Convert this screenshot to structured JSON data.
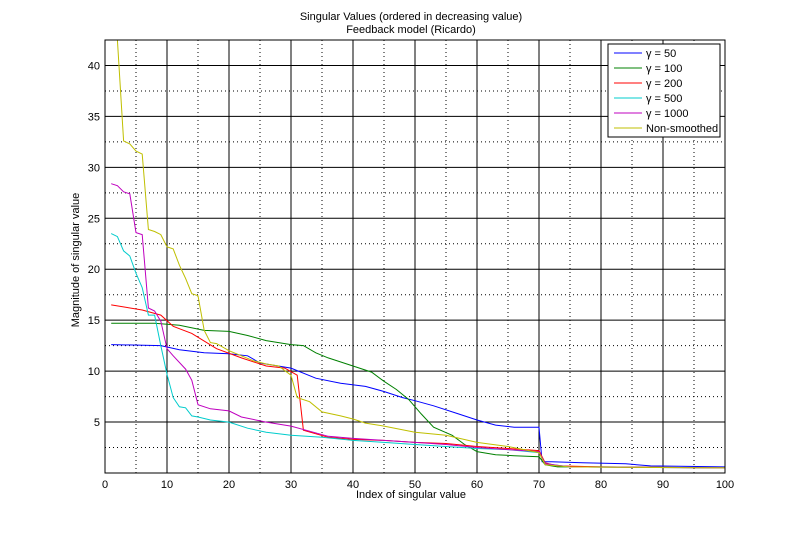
{
  "chart_data": {
    "type": "line",
    "title": "Singular Values (ordered in decreasing value)",
    "subtitle": "Feedback model (Ricardo)",
    "xlabel": "Index of singular value",
    "ylabel": "Magnitude of singular value",
    "xlim": [
      0,
      100
    ],
    "ylim": [
      0,
      42.5
    ],
    "x_ticks": [
      0,
      10,
      20,
      30,
      40,
      50,
      60,
      70,
      80,
      90,
      100
    ],
    "y_ticks": [
      5,
      10,
      15,
      20,
      25,
      30,
      35,
      40
    ],
    "grid": "major solid, minor dotted",
    "legend_position": "top-right",
    "series": [
      {
        "name": "γ = 50",
        "color": "#0000ff",
        "points": [
          [
            1,
            12.6
          ],
          [
            9,
            12.5
          ],
          [
            12,
            12.1
          ],
          [
            16,
            11.8
          ],
          [
            20,
            11.7
          ],
          [
            23,
            11.5
          ],
          [
            25,
            10.8
          ],
          [
            30,
            10.3
          ],
          [
            34,
            9.3
          ],
          [
            38,
            8.8
          ],
          [
            42,
            8.5
          ],
          [
            45,
            8.0
          ],
          [
            48,
            7.4
          ],
          [
            50,
            7.1
          ],
          [
            53,
            6.6
          ],
          [
            57,
            5.8
          ],
          [
            60,
            5.2
          ],
          [
            63,
            4.7
          ],
          [
            66,
            4.5
          ],
          [
            70,
            4.5
          ],
          [
            70.5,
            1.1
          ],
          [
            72,
            1.1
          ],
          [
            77,
            1.0
          ],
          [
            84,
            0.9
          ],
          [
            88,
            0.7
          ],
          [
            100,
            0.6
          ]
        ]
      },
      {
        "name": "γ = 100",
        "color": "#008000",
        "points": [
          [
            1,
            14.7
          ],
          [
            8,
            14.7
          ],
          [
            12,
            14.5
          ],
          [
            16,
            14.0
          ],
          [
            20,
            13.9
          ],
          [
            23,
            13.5
          ],
          [
            26,
            13.0
          ],
          [
            30,
            12.6
          ],
          [
            32,
            12.5
          ],
          [
            34,
            11.8
          ],
          [
            36,
            11.3
          ],
          [
            40,
            10.5
          ],
          [
            43,
            9.9
          ],
          [
            45,
            9.0
          ],
          [
            47,
            8.2
          ],
          [
            49,
            7.2
          ],
          [
            51,
            5.8
          ],
          [
            53,
            4.5
          ],
          [
            56,
            3.7
          ],
          [
            58,
            2.8
          ],
          [
            60,
            2.1
          ],
          [
            63,
            1.8
          ],
          [
            66,
            1.7
          ],
          [
            70,
            1.6
          ],
          [
            71,
            0.8
          ],
          [
            73,
            0.6
          ],
          [
            80,
            0.6
          ],
          [
            100,
            0.5
          ]
        ]
      },
      {
        "name": "γ = 200",
        "color": "#ff0000",
        "points": [
          [
            1,
            16.5
          ],
          [
            6,
            16.0
          ],
          [
            9,
            15.5
          ],
          [
            11,
            14.4
          ],
          [
            14,
            13.7
          ],
          [
            18,
            12.2
          ],
          [
            22,
            11.3
          ],
          [
            26,
            10.5
          ],
          [
            29,
            10.3
          ],
          [
            31,
            9.6
          ],
          [
            32,
            4.2
          ],
          [
            36,
            3.5
          ],
          [
            40,
            3.3
          ],
          [
            45,
            3.2
          ],
          [
            50,
            3.0
          ],
          [
            55,
            2.9
          ],
          [
            60,
            2.6
          ],
          [
            65,
            2.4
          ],
          [
            70,
            2.2
          ],
          [
            71,
            1.0
          ],
          [
            73,
            0.7
          ],
          [
            80,
            0.6
          ],
          [
            100,
            0.5
          ]
        ]
      },
      {
        "name": "γ = 500",
        "color": "#00cccc",
        "points": [
          [
            1,
            23.5
          ],
          [
            2,
            23.2
          ],
          [
            3,
            21.8
          ],
          [
            4,
            21.3
          ],
          [
            5,
            19.6
          ],
          [
            6,
            18.2
          ],
          [
            7,
            15.5
          ],
          [
            8,
            15.5
          ],
          [
            9,
            12.5
          ],
          [
            10,
            9.7
          ],
          [
            11,
            7.4
          ],
          [
            12,
            6.5
          ],
          [
            13,
            6.4
          ],
          [
            14,
            5.6
          ],
          [
            15,
            5.5
          ],
          [
            17,
            5.2
          ],
          [
            20,
            5.0
          ],
          [
            23,
            4.4
          ],
          [
            26,
            4.0
          ],
          [
            30,
            3.7
          ],
          [
            35,
            3.5
          ],
          [
            40,
            3.2
          ],
          [
            45,
            3.0
          ],
          [
            50,
            2.8
          ],
          [
            55,
            2.6
          ],
          [
            60,
            2.4
          ],
          [
            65,
            2.3
          ],
          [
            70,
            2.0
          ],
          [
            71,
            0.9
          ],
          [
            75,
            0.6
          ],
          [
            100,
            0.5
          ]
        ]
      },
      {
        "name": "γ = 1000",
        "color": "#bf00bf",
        "points": [
          [
            1,
            28.4
          ],
          [
            2,
            28.2
          ],
          [
            3,
            27.6
          ],
          [
            4,
            27.4
          ],
          [
            5,
            23.6
          ],
          [
            6,
            23.4
          ],
          [
            7,
            16.2
          ],
          [
            8,
            15.9
          ],
          [
            9,
            14.9
          ],
          [
            10,
            12.2
          ],
          [
            11,
            11.5
          ],
          [
            13,
            10.2
          ],
          [
            14,
            9.1
          ],
          [
            15,
            6.7
          ],
          [
            17,
            6.3
          ],
          [
            20,
            6.1
          ],
          [
            22,
            5.5
          ],
          [
            26,
            5.0
          ],
          [
            30,
            4.6
          ],
          [
            33,
            4.1
          ],
          [
            36,
            3.6
          ],
          [
            40,
            3.4
          ],
          [
            45,
            3.2
          ],
          [
            50,
            3.0
          ],
          [
            55,
            2.8
          ],
          [
            60,
            2.5
          ],
          [
            65,
            2.3
          ],
          [
            70,
            2.1
          ],
          [
            71,
            0.9
          ],
          [
            75,
            0.6
          ],
          [
            100,
            0.5
          ]
        ]
      },
      {
        "name": "Non-smoothed",
        "color": "#bfbf00",
        "points": [
          [
            2,
            42.5
          ],
          [
            3,
            32.6
          ],
          [
            4,
            32.3
          ],
          [
            5,
            31.6
          ],
          [
            6,
            31.3
          ],
          [
            7,
            23.9
          ],
          [
            8,
            23.7
          ],
          [
            9,
            23.4
          ],
          [
            10,
            22.2
          ],
          [
            11,
            22.0
          ],
          [
            12,
            20.4
          ],
          [
            13,
            19.1
          ],
          [
            14,
            17.6
          ],
          [
            15,
            17.4
          ],
          [
            16,
            14.0
          ],
          [
            17,
            12.8
          ],
          [
            18,
            12.7
          ],
          [
            20,
            12.0
          ],
          [
            22,
            11.5
          ],
          [
            24,
            11.0
          ],
          [
            26,
            10.7
          ],
          [
            28,
            10.5
          ],
          [
            30,
            9.6
          ],
          [
            31,
            7.4
          ],
          [
            33,
            7.0
          ],
          [
            35,
            6.0
          ],
          [
            38,
            5.6
          ],
          [
            40,
            5.3
          ],
          [
            42,
            4.9
          ],
          [
            45,
            4.6
          ],
          [
            50,
            4.0
          ],
          [
            55,
            3.7
          ],
          [
            60,
            3.0
          ],
          [
            65,
            2.6
          ],
          [
            70,
            2.0
          ],
          [
            71,
            0.8
          ],
          [
            75,
            0.6
          ],
          [
            100,
            0.5
          ]
        ]
      }
    ]
  }
}
